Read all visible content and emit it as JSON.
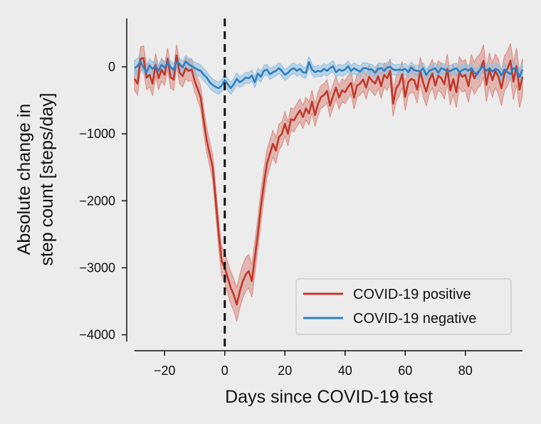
{
  "chart_data": {
    "type": "line",
    "xlabel": "Days since COVID-19 test",
    "ylabel_lines": [
      "Absolute change in",
      "step count [steps/day]"
    ],
    "xlim": [
      -30,
      99
    ],
    "ylim": [
      -4100,
      700
    ],
    "xticks": [
      -20,
      0,
      20,
      40,
      60,
      80
    ],
    "yticks": [
      0,
      -1000,
      -2000,
      -3000,
      -4000
    ],
    "xtick_labels": [
      "−20",
      "0",
      "20",
      "40",
      "60",
      "80"
    ],
    "ytick_labels": [
      "0",
      "−1000",
      "−2000",
      "−3000",
      "−4000"
    ],
    "vline_x": 0,
    "grid": false,
    "legend_position": "lower-right",
    "series": [
      {
        "name": "COVID-19 positive",
        "color": "#c0392b",
        "band_color": "#d98a80",
        "x": [
          -30,
          -29,
          -28,
          -27,
          -26,
          -25,
          -24,
          -23,
          -22,
          -21,
          -20,
          -19,
          -18,
          -17,
          -16,
          -15,
          -14,
          -13,
          -12,
          -11,
          -10,
          -9,
          -8,
          -7,
          -6,
          -5,
          -4,
          -3,
          -2,
          -1,
          0,
          1,
          2,
          3,
          4,
          5,
          6,
          7,
          8,
          9,
          10,
          11,
          12,
          13,
          14,
          15,
          16,
          17,
          18,
          19,
          20,
          21,
          22,
          23,
          24,
          25,
          26,
          27,
          28,
          29,
          30,
          31,
          32,
          33,
          34,
          35,
          36,
          37,
          38,
          39,
          40,
          41,
          42,
          43,
          44,
          45,
          46,
          47,
          48,
          49,
          50,
          51,
          52,
          53,
          54,
          55,
          56,
          57,
          58,
          59,
          60,
          61,
          62,
          63,
          64,
          65,
          66,
          67,
          68,
          69,
          70,
          71,
          72,
          73,
          74,
          75,
          76,
          77,
          78,
          79,
          80,
          81,
          82,
          83,
          84,
          85,
          86,
          87,
          88,
          89,
          90,
          91,
          92,
          93,
          94,
          95,
          96,
          97,
          98,
          99
        ],
        "y": [
          -180,
          -250,
          120,
          130,
          -160,
          -120,
          -250,
          30,
          -170,
          -40,
          -120,
          120,
          -160,
          -190,
          170,
          -90,
          -140,
          -20,
          -60,
          -40,
          -210,
          -330,
          -460,
          -800,
          -1100,
          -1300,
          -1500,
          -2000,
          -2500,
          -2900,
          -3000,
          -3150,
          -3300,
          -3400,
          -3550,
          -3350,
          -3200,
          -3100,
          -3050,
          -3200,
          -2850,
          -2500,
          -2100,
          -1750,
          -1450,
          -1300,
          -1150,
          -1250,
          -1050,
          -1000,
          -850,
          -1000,
          -780,
          -800,
          -720,
          -650,
          -750,
          -620,
          -700,
          -520,
          -720,
          -560,
          -450,
          -420,
          -360,
          -580,
          -440,
          -310,
          -460,
          -350,
          -380,
          -300,
          -240,
          -460,
          -280,
          -250,
          -190,
          -310,
          -150,
          -210,
          -250,
          -140,
          -290,
          -120,
          -170,
          -60,
          -550,
          -320,
          -250,
          -110,
          -450,
          -230,
          -180,
          -200,
          -340,
          -60,
          -240,
          -370,
          -200,
          -100,
          -280,
          -130,
          -170,
          -260,
          -30,
          -350,
          -180,
          -380,
          -80,
          -150,
          -120,
          -290,
          -60,
          -170,
          -90,
          -40,
          90,
          -270,
          -40,
          -200,
          -60,
          -150,
          -320,
          -100,
          -30,
          90,
          -220,
          10,
          -340,
          -150
        ],
        "band": [
          170,
          170,
          180,
          180,
          180,
          180,
          180,
          170,
          170,
          170,
          160,
          160,
          160,
          160,
          160,
          160,
          160,
          160,
          160,
          160,
          160,
          170,
          170,
          180,
          180,
          180,
          190,
          200,
          210,
          220,
          230,
          230,
          240,
          240,
          250,
          250,
          250,
          250,
          250,
          240,
          240,
          230,
          230,
          220,
          210,
          200,
          200,
          190,
          190,
          180,
          180,
          180,
          170,
          170,
          170,
          170,
          170,
          170,
          170,
          170,
          170,
          170,
          170,
          170,
          170,
          170,
          170,
          170,
          170,
          170,
          170,
          170,
          170,
          170,
          170,
          170,
          170,
          170,
          170,
          170,
          180,
          180,
          180,
          180,
          180,
          180,
          190,
          190,
          190,
          190,
          200,
          200,
          200,
          200,
          200,
          200,
          210,
          210,
          210,
          210,
          210,
          220,
          220,
          220,
          220,
          220,
          230,
          230,
          230,
          230,
          230,
          240,
          240,
          240,
          240,
          240,
          240,
          250,
          250,
          250,
          250,
          260,
          260,
          260,
          260,
          260,
          270,
          270,
          270,
          270
        ]
      },
      {
        "name": "COVID-19 negative",
        "color": "#2f7fc1",
        "band_color": "#8fbfe0",
        "x": [
          -30,
          -29,
          -28,
          -27,
          -26,
          -25,
          -24,
          -23,
          -22,
          -21,
          -20,
          -19,
          -18,
          -17,
          -16,
          -15,
          -14,
          -13,
          -12,
          -11,
          -10,
          -9,
          -8,
          -7,
          -6,
          -5,
          -4,
          -3,
          -2,
          -1,
          0,
          1,
          2,
          3,
          4,
          5,
          6,
          7,
          8,
          9,
          10,
          11,
          12,
          13,
          14,
          15,
          16,
          17,
          18,
          19,
          20,
          21,
          22,
          23,
          24,
          25,
          26,
          27,
          28,
          29,
          30,
          31,
          32,
          33,
          34,
          35,
          36,
          37,
          38,
          39,
          40,
          41,
          42,
          43,
          44,
          45,
          46,
          47,
          48,
          49,
          50,
          51,
          52,
          53,
          54,
          55,
          56,
          57,
          58,
          59,
          60,
          61,
          62,
          63,
          64,
          65,
          66,
          67,
          68,
          69,
          70,
          71,
          72,
          73,
          74,
          75,
          76,
          77,
          78,
          79,
          80,
          81,
          82,
          83,
          84,
          85,
          86,
          87,
          88,
          89,
          90,
          91,
          92,
          93,
          94,
          95,
          96,
          97,
          98,
          99
        ],
        "y": [
          -20,
          10,
          80,
          -10,
          -80,
          20,
          -30,
          10,
          -60,
          30,
          -10,
          60,
          0,
          -50,
          70,
          40,
          -10,
          80,
          40,
          10,
          -20,
          -40,
          -60,
          -120,
          -160,
          -230,
          -270,
          -300,
          -320,
          -280,
          -200,
          -260,
          -320,
          -260,
          -180,
          -230,
          -200,
          -160,
          -170,
          -130,
          -230,
          -100,
          -150,
          -60,
          -40,
          -110,
          -80,
          -60,
          -20,
          -60,
          -120,
          -90,
          -40,
          -20,
          -60,
          -30,
          -80,
          -90,
          70,
          -40,
          -80,
          -60,
          -70,
          -30,
          -60,
          -20,
          10,
          -80,
          -40,
          -60,
          -40,
          10,
          -60,
          -20,
          -50,
          -70,
          -20,
          -20,
          -40,
          -40,
          -90,
          -30,
          -20,
          -60,
          -10,
          0,
          -40,
          -50,
          -40,
          -50,
          -30,
          -80,
          -10,
          -50,
          -60,
          -70,
          -20,
          -120,
          -60,
          -40,
          -20,
          -90,
          -20,
          -40,
          -70,
          -60,
          -40,
          -20,
          -80,
          -50,
          -30,
          -60,
          -20,
          -90,
          -110,
          -30,
          0,
          -60,
          -20,
          -70,
          -30,
          -50,
          -130,
          -40,
          -80,
          -110,
          -20,
          -40,
          -150,
          -40
        ],
        "band": [
          110,
          110,
          100,
          100,
          100,
          100,
          100,
          90,
          90,
          90,
          90,
          90,
          90,
          90,
          90,
          90,
          90,
          90,
          90,
          90,
          90,
          90,
          90,
          90,
          90,
          90,
          90,
          90,
          90,
          90,
          90,
          90,
          90,
          90,
          90,
          80,
          80,
          80,
          80,
          80,
          80,
          80,
          80,
          80,
          80,
          80,
          80,
          80,
          80,
          80,
          80,
          80,
          80,
          80,
          80,
          80,
          80,
          80,
          80,
          80,
          80,
          80,
          80,
          80,
          80,
          80,
          80,
          80,
          80,
          80,
          80,
          80,
          80,
          80,
          80,
          80,
          80,
          80,
          80,
          80,
          80,
          80,
          80,
          80,
          80,
          80,
          80,
          80,
          80,
          80,
          80,
          80,
          80,
          80,
          80,
          80,
          80,
          80,
          80,
          80,
          80,
          80,
          80,
          80,
          80,
          80,
          80,
          80,
          80,
          80,
          80,
          80,
          80,
          80,
          80,
          80,
          80,
          80,
          80,
          90,
          90,
          90,
          90,
          90,
          90,
          90,
          90,
          90,
          90,
          90
        ]
      }
    ]
  }
}
